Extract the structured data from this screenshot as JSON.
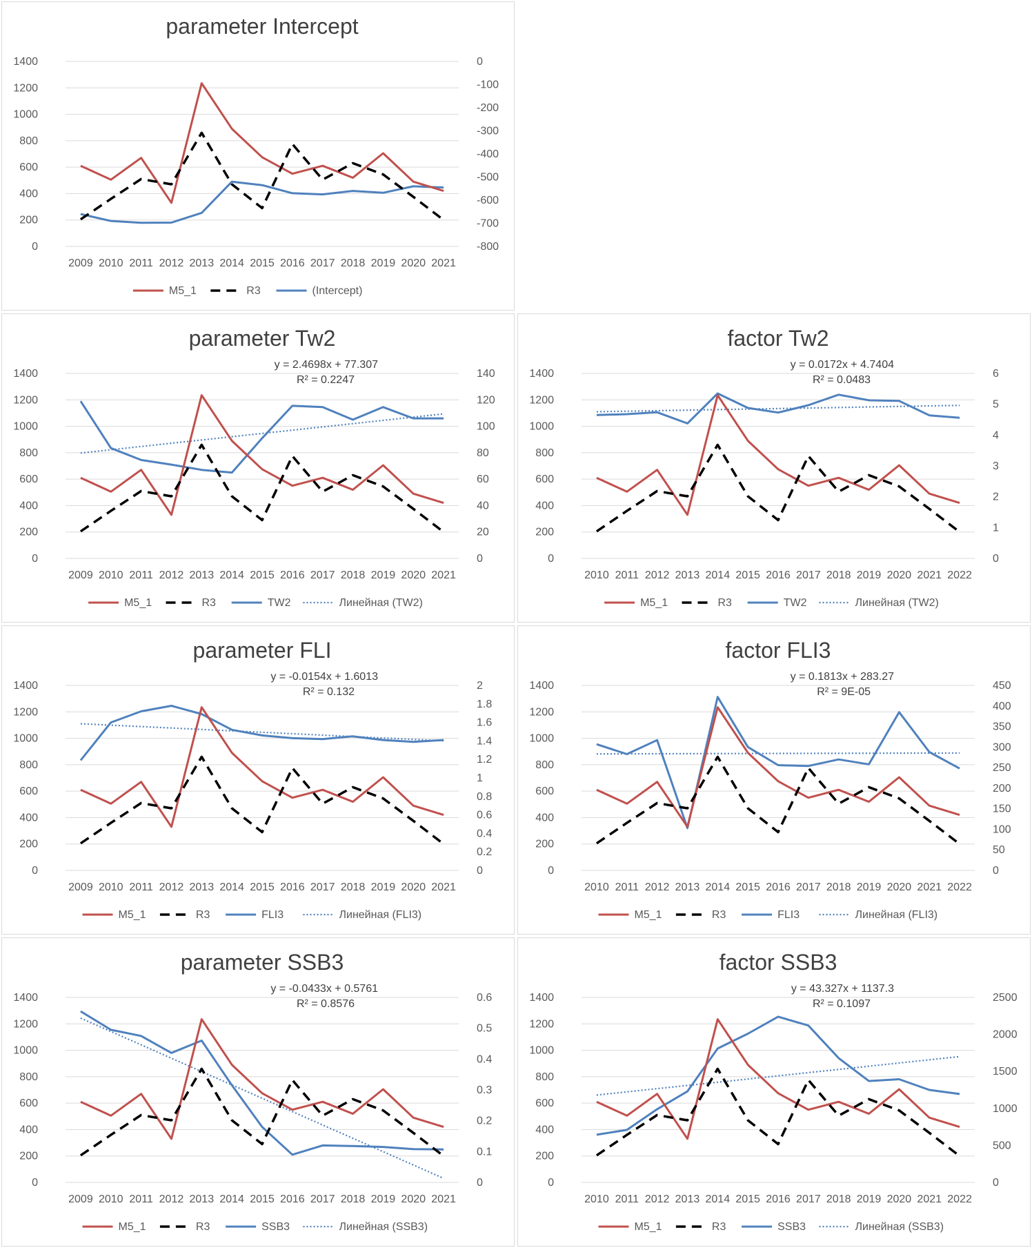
{
  "colors": {
    "m5": "#c0504d",
    "r3": "#000000",
    "param": "#4f81bd",
    "grid": "#d9d9d9",
    "text": "#595959"
  },
  "legend_labels": {
    "m5": "M5_1",
    "r3": "R3"
  },
  "series_years": {
    "m5_r3_2009": [
      2009,
      2010,
      2011,
      2012,
      2013,
      2014,
      2015,
      2016,
      2017,
      2018,
      2019,
      2020,
      2021
    ],
    "m5_r3_2010": [
      2010,
      2011,
      2012,
      2013,
      2014,
      2015,
      2016,
      2017,
      2018,
      2019,
      2020,
      2021,
      2022
    ]
  },
  "chart_data": [
    {
      "type": "line",
      "title": "parameter Intercept",
      "categories": [
        "2009",
        "2010",
        "2011",
        "2012",
        "2013",
        "2014",
        "2015",
        "2016",
        "2017",
        "2018",
        "2019",
        "2020",
        "2021"
      ],
      "y_left": {
        "min": 0,
        "max": 1400,
        "step": 200,
        "ticks": [
          "0",
          "200",
          "400",
          "600",
          "800",
          "1000",
          "1200",
          "1400"
        ]
      },
      "y_right": {
        "min": -800,
        "max": 0,
        "step": 100,
        "ticks": [
          "-800",
          "-700",
          "-600",
          "-500",
          "-400",
          "-300",
          "-200",
          "-100",
          "0"
        ]
      },
      "series": [
        {
          "name": "M5_1",
          "axis": "left",
          "style": "m5",
          "values": [
            610,
            505,
            670,
            330,
            1235,
            890,
            675,
            550,
            610,
            520,
            705,
            490,
            420
          ]
        },
        {
          "name": "R3",
          "axis": "left",
          "style": "r3",
          "values": [
            205,
            360,
            510,
            470,
            860,
            470,
            290,
            775,
            505,
            630,
            545,
            375,
            200
          ]
        },
        {
          "name": "(Intercept)",
          "axis": "right",
          "style": "param",
          "values": [
            -660,
            -690,
            -698,
            -697,
            -655,
            -520,
            -535,
            -570,
            -575,
            -560,
            -568,
            -540,
            -545
          ]
        }
      ],
      "trend": null
    },
    {
      "type": "line",
      "title": "parameter Tw2",
      "categories": [
        "2009",
        "2010",
        "2011",
        "2012",
        "2013",
        "2014",
        "2015",
        "2016",
        "2017",
        "2018",
        "2019",
        "2020",
        "2021"
      ],
      "y_left": {
        "min": 0,
        "max": 1400,
        "step": 200,
        "ticks": [
          "0",
          "200",
          "400",
          "600",
          "800",
          "1000",
          "1200",
          "1400"
        ]
      },
      "y_right": {
        "min": 0,
        "max": 140,
        "step": 20,
        "ticks": [
          "0",
          "20",
          "40",
          "60",
          "80",
          "100",
          "120",
          "140"
        ]
      },
      "series": [
        {
          "name": "M5_1",
          "axis": "left",
          "style": "m5",
          "values": [
            610,
            505,
            670,
            330,
            1235,
            890,
            675,
            550,
            610,
            520,
            705,
            490,
            420
          ]
        },
        {
          "name": "R3",
          "axis": "left",
          "style": "r3",
          "values": [
            205,
            360,
            510,
            470,
            860,
            470,
            290,
            775,
            505,
            630,
            545,
            375,
            200
          ]
        },
        {
          "name": "TW2",
          "axis": "right",
          "style": "param",
          "values": [
            119,
            83.5,
            74.5,
            71,
            67,
            65,
            91,
            115.5,
            114.5,
            105,
            114.5,
            106,
            106
          ]
        }
      ],
      "trend": {
        "name": "Линейная (TW2)",
        "axis": "right",
        "slope": 2.4698,
        "intercept": 77.307,
        "equation": "y = 2.4698x + 77.307",
        "r2": "R² = 0.2247"
      }
    },
    {
      "type": "line",
      "title": "factor Tw2",
      "categories": [
        "2010",
        "2011",
        "2012",
        "2013",
        "2014",
        "2015",
        "2016",
        "2017",
        "2018",
        "2019",
        "2020",
        "2021",
        "2022"
      ],
      "y_left": {
        "min": 0,
        "max": 1400,
        "step": 200,
        "ticks": [
          "0",
          "200",
          "400",
          "600",
          "800",
          "1000",
          "1200",
          "1400"
        ]
      },
      "y_right": {
        "min": 0,
        "max": 6,
        "step": 1,
        "ticks": [
          "0",
          "1",
          "2",
          "3",
          "4",
          "5",
          "6"
        ]
      },
      "series": [
        {
          "name": "M5_1",
          "axis": "left",
          "style": "m5",
          "values": [
            610,
            505,
            670,
            330,
            1235,
            890,
            675,
            550,
            610,
            520,
            705,
            490,
            420
          ]
        },
        {
          "name": "R3",
          "axis": "left",
          "style": "r3",
          "values": [
            205,
            360,
            510,
            470,
            860,
            470,
            290,
            775,
            505,
            630,
            545,
            375,
            200
          ]
        },
        {
          "name": "TW2",
          "axis": "right",
          "style": "param",
          "values": [
            4.65,
            4.68,
            4.74,
            4.38,
            5.35,
            4.88,
            4.73,
            4.97,
            5.31,
            5.13,
            5.11,
            4.64,
            4.56
          ]
        }
      ],
      "trend": {
        "name": "Линейная (TW2)",
        "axis": "right",
        "slope": 0.0172,
        "intercept": 4.7404,
        "equation": "y = 0.0172x + 4.7404",
        "r2": "R² = 0.0483"
      }
    },
    {
      "type": "line",
      "title": "parameter FLI",
      "categories": [
        "2009",
        "2010",
        "2011",
        "2012",
        "2013",
        "2014",
        "2015",
        "2016",
        "2017",
        "2018",
        "2019",
        "2020",
        "2021"
      ],
      "y_left": {
        "min": 0,
        "max": 1400,
        "step": 200,
        "ticks": [
          "0",
          "200",
          "400",
          "600",
          "800",
          "1000",
          "1200",
          "1400"
        ]
      },
      "y_right": {
        "min": 0,
        "max": 2,
        "step": 0.2,
        "ticks": [
          "0",
          "0.2",
          "0.4",
          "0.6",
          "0.8",
          "1",
          "1.2",
          "1.4",
          "1.6",
          "1.8",
          "2"
        ]
      },
      "series": [
        {
          "name": "M5_1",
          "axis": "left",
          "style": "m5",
          "values": [
            610,
            505,
            670,
            330,
            1235,
            890,
            675,
            550,
            610,
            520,
            705,
            490,
            420
          ]
        },
        {
          "name": "R3",
          "axis": "left",
          "style": "r3",
          "values": [
            205,
            360,
            510,
            470,
            860,
            470,
            290,
            775,
            505,
            630,
            545,
            375,
            200
          ]
        },
        {
          "name": "FLI3",
          "axis": "right",
          "style": "param",
          "values": [
            1.19,
            1.6,
            1.72,
            1.78,
            1.69,
            1.52,
            1.46,
            1.43,
            1.42,
            1.45,
            1.41,
            1.39,
            1.41
          ]
        }
      ],
      "trend": {
        "name": "Линейная (FLI3)",
        "axis": "right",
        "slope": -0.0154,
        "intercept": 1.6013,
        "equation": "y = -0.0154x + 1.6013",
        "r2": "R² = 0.132"
      }
    },
    {
      "type": "line",
      "title": "factor FLI3",
      "categories": [
        "2010",
        "2011",
        "2012",
        "2013",
        "2014",
        "2015",
        "2016",
        "2017",
        "2018",
        "2019",
        "2020",
        "2021",
        "2022"
      ],
      "y_left": {
        "min": 0,
        "max": 1400,
        "step": 200,
        "ticks": [
          "0",
          "200",
          "400",
          "600",
          "800",
          "1000",
          "1200",
          "1400"
        ]
      },
      "y_right": {
        "min": 0,
        "max": 450,
        "step": 50,
        "ticks": [
          "0",
          "50",
          "100",
          "150",
          "200",
          "250",
          "300",
          "350",
          "400",
          "450"
        ]
      },
      "series": [
        {
          "name": "M5_1",
          "axis": "left",
          "style": "m5",
          "values": [
            610,
            505,
            670,
            330,
            1235,
            890,
            675,
            550,
            610,
            520,
            705,
            490,
            420
          ]
        },
        {
          "name": "R3",
          "axis": "left",
          "style": "r3",
          "values": [
            205,
            360,
            510,
            470,
            860,
            470,
            290,
            775,
            505,
            630,
            545,
            375,
            200
          ]
        },
        {
          "name": "FLI3",
          "axis": "right",
          "style": "param",
          "values": [
            307,
            283,
            317,
            103,
            422,
            300,
            256,
            254,
            270,
            258,
            385,
            288,
            248
          ]
        }
      ],
      "trend": {
        "name": "Линейная (FLI3)",
        "axis": "right",
        "slope": 0.1813,
        "intercept": 283.27,
        "equation": "y = 0.1813x + 283.27",
        "r2": "R² = 9E-05"
      }
    },
    {
      "type": "line",
      "title": "parameter SSB3",
      "categories": [
        "2009",
        "2010",
        "2011",
        "2012",
        "2013",
        "2014",
        "2015",
        "2016",
        "2017",
        "2018",
        "2019",
        "2020",
        "2021"
      ],
      "y_left": {
        "min": 0,
        "max": 1400,
        "step": 200,
        "ticks": [
          "0",
          "200",
          "400",
          "600",
          "800",
          "1000",
          "1200",
          "1400"
        ]
      },
      "y_right": {
        "min": 0,
        "max": 0.6,
        "step": 0.1,
        "ticks": [
          "0",
          "0.1",
          "0.2",
          "0.3",
          "0.4",
          "0.5",
          "0.6"
        ]
      },
      "series": [
        {
          "name": "M5_1",
          "axis": "left",
          "style": "m5",
          "values": [
            610,
            505,
            670,
            330,
            1235,
            890,
            675,
            550,
            610,
            520,
            705,
            490,
            420
          ]
        },
        {
          "name": "R3",
          "axis": "left",
          "style": "r3",
          "values": [
            205,
            360,
            510,
            470,
            860,
            470,
            290,
            775,
            505,
            630,
            545,
            375,
            200
          ]
        },
        {
          "name": "SSB3",
          "axis": "right",
          "style": "param",
          "values": [
            0.555,
            0.495,
            0.475,
            0.42,
            0.46,
            0.315,
            0.18,
            0.09,
            0.12,
            0.118,
            0.115,
            0.108,
            0.107
          ]
        }
      ],
      "trend": {
        "name": "Линейная (SSB3)",
        "axis": "right",
        "slope": -0.0433,
        "intercept": 0.5761,
        "equation": "y = -0.0433x + 0.5761",
        "r2": "R² = 0.8576"
      }
    },
    {
      "type": "line",
      "title": "factor SSB3",
      "categories": [
        "2010",
        "2011",
        "2012",
        "2013",
        "2014",
        "2015",
        "2016",
        "2017",
        "2018",
        "2019",
        "2020",
        "2021",
        "2022"
      ],
      "y_left": {
        "min": 0,
        "max": 1400,
        "step": 200,
        "ticks": [
          "0",
          "200",
          "400",
          "600",
          "800",
          "1000",
          "1200",
          "1400"
        ]
      },
      "y_right": {
        "min": 0,
        "max": 2500,
        "step": 500,
        "ticks": [
          "0",
          "500",
          "1000",
          "1500",
          "2000",
          "2500"
        ]
      },
      "series": [
        {
          "name": "M5_1",
          "axis": "left",
          "style": "m5",
          "values": [
            610,
            505,
            670,
            330,
            1235,
            890,
            675,
            550,
            610,
            520,
            705,
            490,
            420
          ]
        },
        {
          "name": "R3",
          "axis": "left",
          "style": "r3",
          "values": [
            205,
            360,
            510,
            470,
            860,
            470,
            290,
            775,
            505,
            630,
            545,
            375,
            200
          ]
        },
        {
          "name": "SSB3",
          "axis": "right",
          "style": "param",
          "values": [
            645,
            710,
            990,
            1230,
            1810,
            2010,
            2240,
            2120,
            1680,
            1370,
            1395,
            1250,
            1195
          ]
        }
      ],
      "trend": {
        "name": "Линейная (SSB3)",
        "axis": "right",
        "slope": 43.327,
        "intercept": 1137.3,
        "equation": "y = 43.327x + 1137.3",
        "r2": "R² = 0.1097"
      }
    }
  ]
}
